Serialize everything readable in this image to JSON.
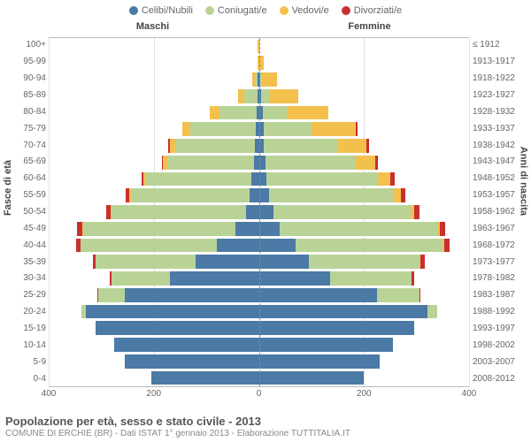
{
  "legend": [
    {
      "label": "Celibi/Nubili",
      "color": "#4a7aa5"
    },
    {
      "label": "Coniugati/e",
      "color": "#b9d397"
    },
    {
      "label": "Vedovi/e",
      "color": "#f3c04d"
    },
    {
      "label": "Divorziati/e",
      "color": "#c73030"
    }
  ],
  "side_titles": {
    "m": "Maschi",
    "f": "Femmine"
  },
  "y_axis_left": "Fasce di età",
  "y_axis_right": "Anni di nascita",
  "x_axis": {
    "max": 400,
    "ticks": [
      400,
      200,
      0,
      200,
      400
    ]
  },
  "title": "Popolazione per età, sesso e stato civile - 2013",
  "subtitle": "COMUNE DI ERCHIE (BR) - Dati ISTAT 1° gennaio 2013 - Elaborazione TUTTITALIA.IT",
  "colors": {
    "celibi": "#4a7aa5",
    "coniugati": "#b9d397",
    "vedovi": "#f3c04d",
    "divorziati": "#c73030",
    "grid": "#e0e0e0",
    "center_axis": "#888888",
    "bg": "#ffffff"
  },
  "rows": [
    {
      "age": "100+",
      "birth": "≤ 1912",
      "m": [
        0,
        0,
        2,
        0
      ],
      "f": [
        0,
        0,
        2,
        0
      ]
    },
    {
      "age": "95-99",
      "birth": "1913-1917",
      "m": [
        0,
        0,
        3,
        0
      ],
      "f": [
        0,
        0,
        10,
        0
      ]
    },
    {
      "age": "90-94",
      "birth": "1918-1922",
      "m": [
        2,
        5,
        5,
        0
      ],
      "f": [
        3,
        3,
        28,
        0
      ]
    },
    {
      "age": "85-89",
      "birth": "1923-1927",
      "m": [
        3,
        25,
        12,
        0
      ],
      "f": [
        5,
        15,
        55,
        0
      ]
    },
    {
      "age": "80-84",
      "birth": "1928-1932",
      "m": [
        5,
        70,
        18,
        0
      ],
      "f": [
        8,
        45,
        80,
        0
      ]
    },
    {
      "age": "75-79",
      "birth": "1933-1937",
      "m": [
        6,
        125,
        15,
        0
      ],
      "f": [
        10,
        90,
        85,
        2
      ]
    },
    {
      "age": "70-74",
      "birth": "1938-1942",
      "m": [
        8,
        150,
        12,
        2
      ],
      "f": [
        10,
        140,
        55,
        4
      ]
    },
    {
      "age": "65-69",
      "birth": "1943-1947",
      "m": [
        10,
        165,
        7,
        3
      ],
      "f": [
        12,
        170,
        40,
        5
      ]
    },
    {
      "age": "60-64",
      "birth": "1948-1952",
      "m": [
        14,
        200,
        5,
        5
      ],
      "f": [
        15,
        210,
        25,
        8
      ]
    },
    {
      "age": "55-59",
      "birth": "1953-1957",
      "m": [
        18,
        225,
        3,
        7
      ],
      "f": [
        20,
        235,
        15,
        8
      ]
    },
    {
      "age": "50-54",
      "birth": "1958-1962",
      "m": [
        25,
        255,
        2,
        8
      ],
      "f": [
        28,
        260,
        8,
        10
      ]
    },
    {
      "age": "45-49",
      "birth": "1963-1967",
      "m": [
        45,
        290,
        1,
        10
      ],
      "f": [
        40,
        300,
        5,
        10
      ]
    },
    {
      "age": "40-44",
      "birth": "1968-1972",
      "m": [
        80,
        260,
        0,
        8
      ],
      "f": [
        70,
        280,
        3,
        10
      ]
    },
    {
      "age": "35-39",
      "birth": "1973-1977",
      "m": [
        120,
        190,
        0,
        6
      ],
      "f": [
        95,
        210,
        2,
        8
      ]
    },
    {
      "age": "30-34",
      "birth": "1978-1982",
      "m": [
        170,
        110,
        0,
        4
      ],
      "f": [
        135,
        155,
        1,
        5
      ]
    },
    {
      "age": "25-29",
      "birth": "1983-1987",
      "m": [
        255,
        50,
        0,
        2
      ],
      "f": [
        225,
        80,
        0,
        3
      ]
    },
    {
      "age": "20-24",
      "birth": "1988-1992",
      "m": [
        330,
        8,
        0,
        0
      ],
      "f": [
        320,
        20,
        0,
        0
      ]
    },
    {
      "age": "15-19",
      "birth": "1993-1997",
      "m": [
        310,
        0,
        0,
        0
      ],
      "f": [
        295,
        0,
        0,
        0
      ]
    },
    {
      "age": "10-14",
      "birth": "1998-2002",
      "m": [
        275,
        0,
        0,
        0
      ],
      "f": [
        255,
        0,
        0,
        0
      ]
    },
    {
      "age": "5-9",
      "birth": "2003-2007",
      "m": [
        255,
        0,
        0,
        0
      ],
      "f": [
        230,
        0,
        0,
        0
      ]
    },
    {
      "age": "0-4",
      "birth": "2008-2012",
      "m": [
        205,
        0,
        0,
        0
      ],
      "f": [
        200,
        0,
        0,
        0
      ]
    }
  ]
}
